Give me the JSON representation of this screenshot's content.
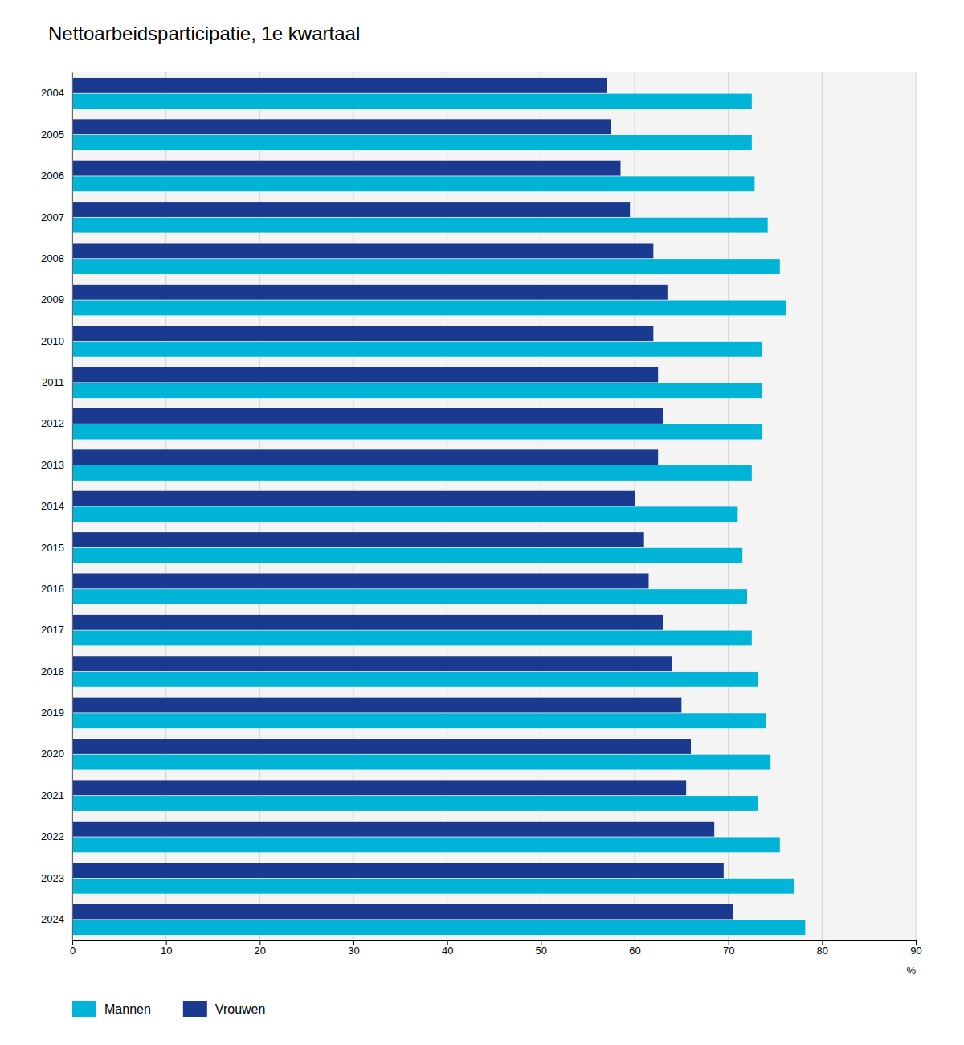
{
  "chart_data": {
    "type": "bar",
    "orientation": "horizontal",
    "title": "Nettoarbeidsparticipatie, 1e kwartaal",
    "x_label": "%",
    "categories": [
      "2004",
      "2005",
      "2006",
      "2007",
      "2008",
      "2009",
      "2010",
      "2011",
      "2012",
      "2013",
      "2014",
      "2015",
      "2016",
      "2017",
      "2018",
      "2019",
      "2020",
      "2021",
      "2022",
      "2023",
      "2024"
    ],
    "series": [
      {
        "name": "Mannen",
        "color": "#00B4D8",
        "values": [
          72.5,
          72.5,
          72.8,
          74.2,
          75.5,
          76.2,
          73.6,
          73.6,
          73.6,
          72.5,
          71.0,
          71.5,
          72.0,
          72.5,
          73.2,
          74.0,
          74.5,
          73.2,
          75.5,
          77.0,
          78.2
        ]
      },
      {
        "name": "Vrouwen",
        "color": "#1A3A8F",
        "values": [
          57.0,
          57.5,
          58.5,
          59.5,
          62.0,
          63.5,
          62.0,
          62.5,
          63.0,
          62.5,
          60.0,
          61.0,
          61.5,
          63.0,
          64.0,
          65.0,
          66.0,
          65.5,
          68.5,
          69.5,
          70.5
        ]
      }
    ],
    "xlim": [
      0,
      90
    ],
    "xticks": [
      0,
      10,
      20,
      30,
      40,
      50,
      60,
      70,
      80,
      90
    ],
    "grid": true,
    "legend": "lower left"
  }
}
